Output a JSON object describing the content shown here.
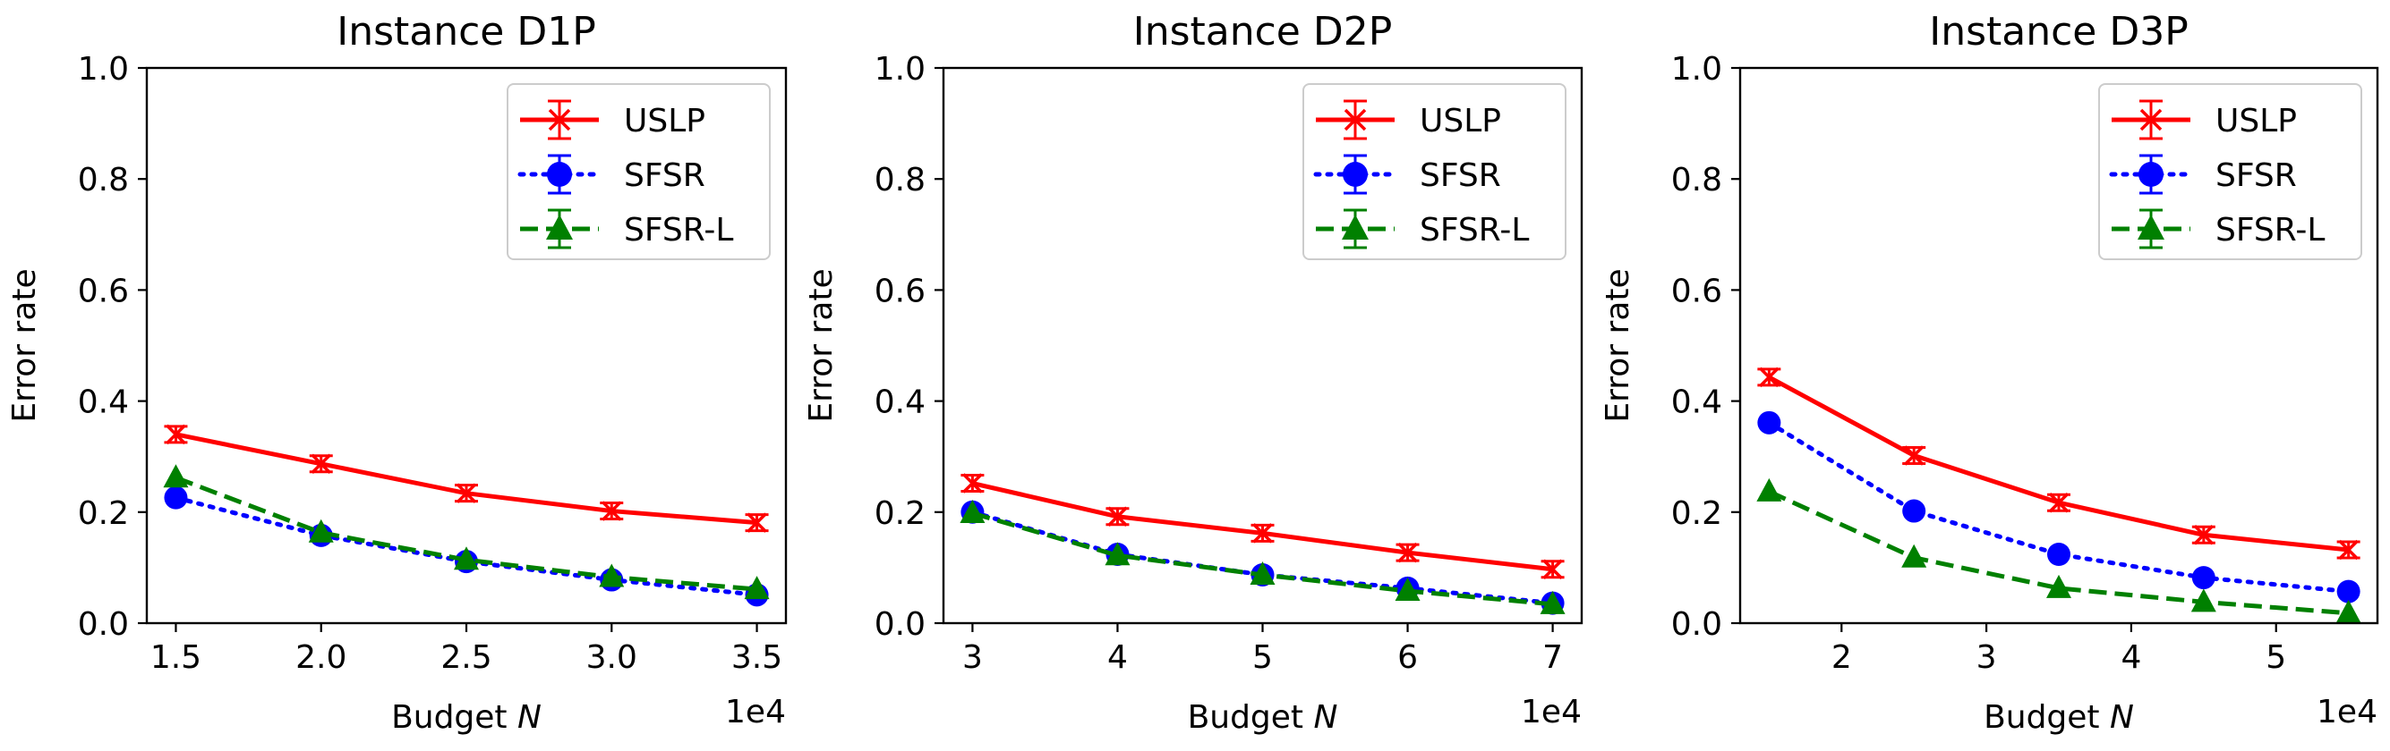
{
  "chart_data": [
    {
      "type": "line",
      "title": "Instance D1P",
      "xlabel_prefix": "Budget ",
      "xlabel_var": "N",
      "ylabel": "Error rate",
      "x_offset_label": "1e4",
      "xlim": [
        1.4,
        3.6
      ],
      "ylim": [
        0.0,
        1.0
      ],
      "xticks": [
        1.5,
        2.0,
        2.5,
        3.0,
        3.5
      ],
      "xtick_labels": [
        "1.5",
        "2.0",
        "2.5",
        "3.0",
        "3.5"
      ],
      "yticks": [
        0.0,
        0.2,
        0.4,
        0.6,
        0.8,
        1.0
      ],
      "ytick_labels": [
        "0.0",
        "0.2",
        "0.4",
        "0.6",
        "0.8",
        "1.0"
      ],
      "legend_position": "top-right",
      "x": [
        1.5,
        2.0,
        2.5,
        3.0,
        3.5
      ],
      "series": [
        {
          "name": "USLP",
          "color": "#ff0000",
          "style": "solid",
          "marker": "x-cap",
          "values": [
            0.34,
            0.287,
            0.234,
            0.202,
            0.181
          ]
        },
        {
          "name": "SFSR",
          "color": "#0000ff",
          "style": "dotted",
          "marker": "circle",
          "values": [
            0.226,
            0.158,
            0.111,
            0.078,
            0.051
          ]
        },
        {
          "name": "SFSR-L",
          "color": "#008000",
          "style": "dashed",
          "marker": "triangle",
          "values": [
            0.262,
            0.163,
            0.114,
            0.083,
            0.061
          ]
        }
      ]
    },
    {
      "type": "line",
      "title": "Instance D2P",
      "xlabel_prefix": "Budget ",
      "xlabel_var": "N",
      "ylabel": "Error rate",
      "x_offset_label": "1e4",
      "xlim": [
        2.8,
        7.2
      ],
      "ylim": [
        0.0,
        1.0
      ],
      "xticks": [
        3,
        4,
        5,
        6,
        7
      ],
      "xtick_labels": [
        "3",
        "4",
        "5",
        "6",
        "7"
      ],
      "yticks": [
        0.0,
        0.2,
        0.4,
        0.6,
        0.8,
        1.0
      ],
      "ytick_labels": [
        "0.0",
        "0.2",
        "0.4",
        "0.6",
        "0.8",
        "1.0"
      ],
      "legend_position": "top-right",
      "x": [
        3,
        4,
        5,
        6,
        7
      ],
      "series": [
        {
          "name": "USLP",
          "color": "#ff0000",
          "style": "solid",
          "marker": "x-cap",
          "values": [
            0.252,
            0.192,
            0.162,
            0.127,
            0.097
          ]
        },
        {
          "name": "SFSR",
          "color": "#0000ff",
          "style": "dotted",
          "marker": "circle",
          "values": [
            0.2,
            0.124,
            0.087,
            0.063,
            0.036
          ]
        },
        {
          "name": "SFSR-L",
          "color": "#008000",
          "style": "dashed",
          "marker": "triangle",
          "values": [
            0.198,
            0.122,
            0.087,
            0.058,
            0.034
          ]
        }
      ]
    },
    {
      "type": "line",
      "title": "Instance D3P",
      "xlabel_prefix": "Budget ",
      "xlabel_var": "N",
      "ylabel": "Error rate",
      "x_offset_label": "1e4",
      "xlim": [
        1.3,
        5.7
      ],
      "ylim": [
        0.0,
        1.0
      ],
      "xticks": [
        2,
        3,
        4,
        5
      ],
      "xtick_labels": [
        "2",
        "3",
        "4",
        "5"
      ],
      "yticks": [
        0.0,
        0.2,
        0.4,
        0.6,
        0.8,
        1.0
      ],
      "ytick_labels": [
        "0.0",
        "0.2",
        "0.4",
        "0.6",
        "0.8",
        "1.0"
      ],
      "legend_position": "top-right",
      "x": [
        1.5,
        2.5,
        3.5,
        4.5,
        5.5
      ],
      "series": [
        {
          "name": "USLP",
          "color": "#ff0000",
          "style": "solid",
          "marker": "x-cap",
          "values": [
            0.443,
            0.302,
            0.217,
            0.159,
            0.132
          ]
        },
        {
          "name": "SFSR",
          "color": "#0000ff",
          "style": "dotted",
          "marker": "circle",
          "values": [
            0.361,
            0.202,
            0.124,
            0.082,
            0.057
          ]
        },
        {
          "name": "SFSR-L",
          "color": "#008000",
          "style": "dashed",
          "marker": "triangle",
          "values": [
            0.237,
            0.118,
            0.063,
            0.038,
            0.018
          ]
        }
      ]
    }
  ]
}
